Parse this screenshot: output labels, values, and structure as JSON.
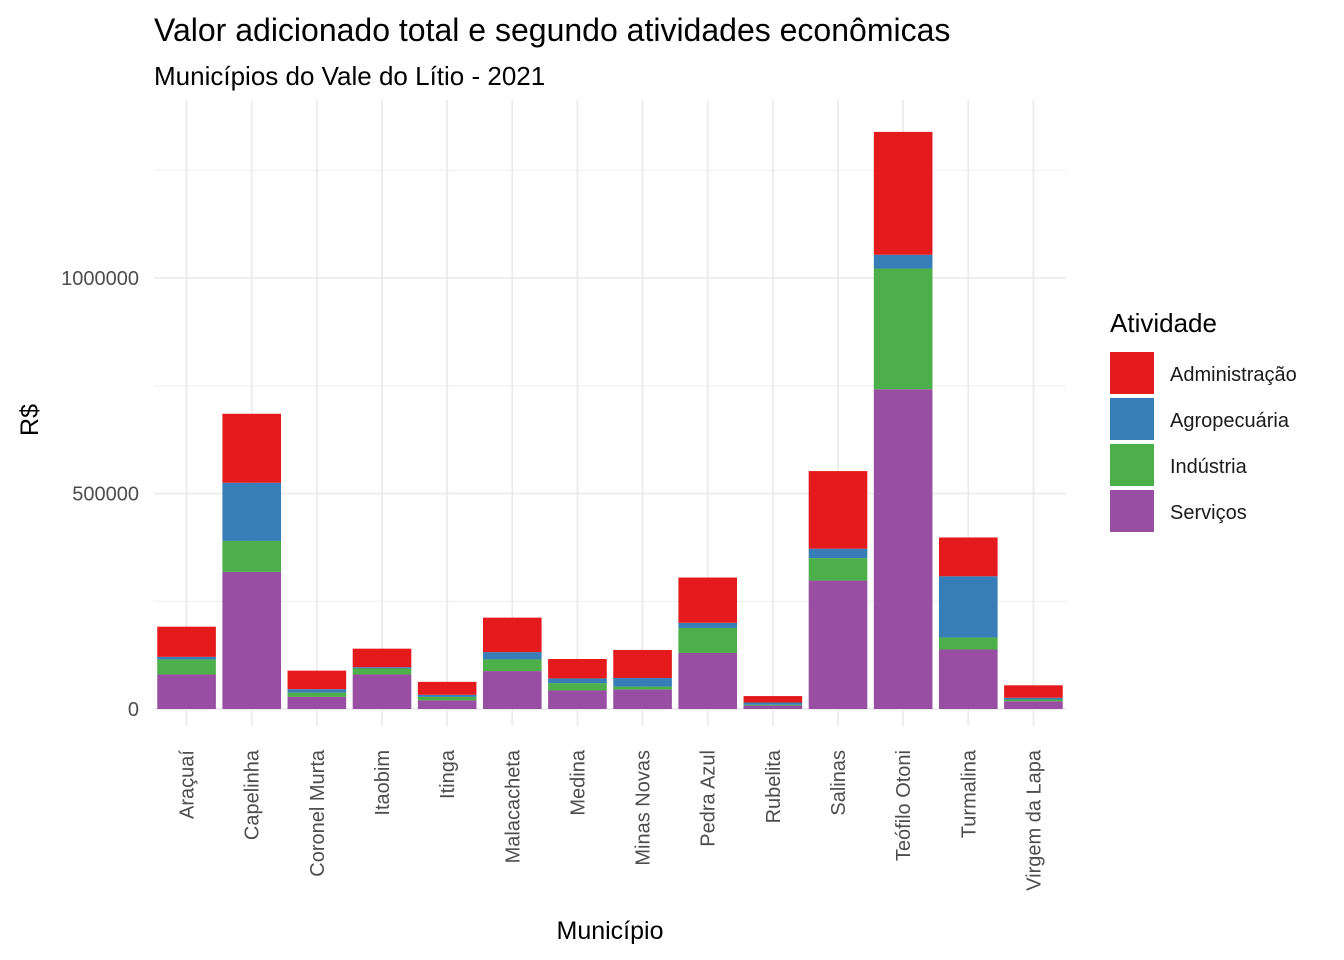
{
  "chart_data": {
    "type": "bar",
    "stacked": true,
    "title": "Valor adicionado total e segundo atividades econômicas",
    "subtitle": "Municípios do Vale do Lítio - 2021",
    "xlabel": "Município",
    "ylabel": "R$",
    "ylim": [
      0,
      1400000
    ],
    "yticks": [
      0,
      500000,
      1000000
    ],
    "ytick_labels": [
      "0",
      "500000",
      "1000000"
    ],
    "grid": true,
    "legend_title": "Atividade",
    "legend_position": "right",
    "categories": [
      "Araçuaí",
      "Capelinha",
      "Coronel Murta",
      "Itaobim",
      "Itinga",
      "Malacacheta",
      "Medina",
      "Minas Novas",
      "Pedra Azul",
      "Rubelita",
      "Salinas",
      "Teófilo Otoni",
      "Turmalina",
      "Virgem da Lapa"
    ],
    "series": [
      {
        "name": "Serviços",
        "color": "#984EA3",
        "values": [
          80000,
          318000,
          28000,
          80000,
          20000,
          88000,
          43000,
          45000,
          130000,
          8000,
          298000,
          742000,
          138000,
          18000
        ]
      },
      {
        "name": "Indústria",
        "color": "#4DAF4A",
        "values": [
          35000,
          72000,
          10000,
          14000,
          8000,
          27000,
          17000,
          7000,
          58000,
          2000,
          52000,
          280000,
          28000,
          4000
        ]
      },
      {
        "name": "Agropecuária",
        "color": "#377EB8",
        "values": [
          6000,
          135000,
          8000,
          3000,
          5000,
          17000,
          11000,
          20000,
          12000,
          5000,
          22000,
          32000,
          142000,
          4000
        ]
      },
      {
        "name": "Administração",
        "color": "#E41A1C",
        "values": [
          70000,
          160000,
          43000,
          43000,
          30000,
          80000,
          45000,
          65000,
          105000,
          15000,
          180000,
          285000,
          90000,
          29000
        ]
      }
    ],
    "legend_order": [
      "Administração",
      "Agropecuária",
      "Indústria",
      "Serviços"
    ]
  }
}
